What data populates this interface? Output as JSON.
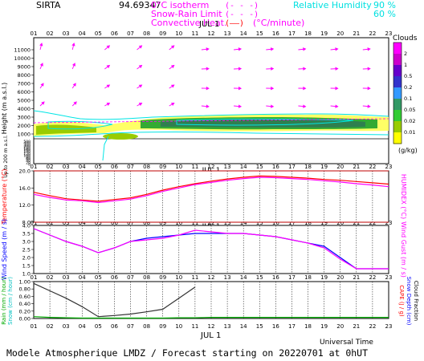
{
  "header": {
    "site": "SIRTA",
    "station_code": "94.69347",
    "legend_isotherm": "0°C isotherm",
    "legend_isotherm_sample": "(- - -)",
    "legend_snow": "Snow-Rain Limit",
    "legend_snow_sample": "(- - -)",
    "legend_conv": "Convective Heat.",
    "legend_conv_sample": "(——)",
    "legend_conv_unit": "(°C/minute)",
    "legend_rh": "Relative Humidity",
    "rh_90": "90 %",
    "rh_60": "60 %",
    "month_label": "JUL 1"
  },
  "colors": {
    "magenta": "#ff00ff",
    "cyan": "#00ffff",
    "red": "#ff0000",
    "blue": "#0000ff",
    "dark_green": "#006633",
    "bright_green": "#33cc33",
    "yellow": "#ffff00",
    "purple": "#9900cc"
  },
  "hours": [
    "01",
    "02",
    "03",
    "04",
    "05",
    "06",
    "07",
    "08",
    "09",
    "10",
    "11",
    "12",
    "13",
    "14",
    "15",
    "16",
    "17",
    "18",
    "19",
    "20",
    "21",
    "22",
    "23"
  ],
  "footer": {
    "caption": "Modele Atmospherique LMDZ / Forecast starting on 20220701 at 0hUT",
    "universal_time": "Universal Time",
    "month_label": "JUL 1"
  },
  "cloud_legend": {
    "title": "Clouds",
    "ticks": [
      "2",
      "1",
      "0.5",
      "0.2",
      "0.1",
      "0.05",
      "0.02",
      "0.01"
    ],
    "unit": "(g/kg)",
    "colors": [
      "#ff00ff",
      "#cc00cc",
      "#6600cc",
      "#3333cc",
      "#3399ff",
      "#339966",
      "#33cc33",
      "#99cc00",
      "#ffff00"
    ]
  },
  "chart_data": [
    {
      "type": "heatmap",
      "title": "Cloud water content and wind",
      "ylabel": "Height (m a.s.l.)",
      "ylabel2": "Up to 200 m a.s.l.",
      "y_ticks": [
        "11000",
        "10000",
        "9000",
        "8000",
        "7000",
        "6000",
        "5000",
        "4000",
        "3000",
        "2000",
        "1000",
        "500",
        "400",
        "300",
        "200",
        "180",
        "160",
        "140",
        "120",
        "100",
        "80",
        "60",
        "40",
        "20",
        "0"
      ],
      "x_ticks": [
        "01",
        "02",
        "03",
        "04",
        "05",
        "06",
        "07",
        "08",
        "09",
        "10",
        "11",
        "12",
        "13",
        "14",
        "15",
        "16",
        "17",
        "18",
        "19",
        "20",
        "21",
        "22",
        "23"
      ],
      "colorbar_unit": "g/kg",
      "cloud_layer_m": [
        1200,
        2800
      ],
      "wind_vectors_direction": "from south-west"
    },
    {
      "type": "line",
      "title": "Temperature",
      "ylabel": "Temperature (°C)",
      "ylabel2": "HUMIDEX (°C)",
      "ylim": [
        8.0,
        20.0
      ],
      "y_ticks": [
        "20.0",
        "16.0",
        "12.0",
        "8.0"
      ],
      "x": [
        "01",
        "02",
        "03",
        "04",
        "05",
        "06",
        "07",
        "08",
        "09",
        "10",
        "11",
        "12",
        "13",
        "14",
        "15",
        "16",
        "17",
        "18",
        "19",
        "20",
        "21",
        "22",
        "23"
      ],
      "series": [
        {
          "values": [
            15.0,
            14.2,
            13.5,
            13.2,
            12.9,
            13.3,
            13.7,
            14.5,
            15.5,
            16.3,
            17.0,
            17.6,
            18.1,
            18.5,
            18.8,
            18.7,
            18.5,
            18.3,
            18.0,
            17.8,
            17.5,
            17.2,
            16.9
          ]
        },
        {
          "values": [
            14.5,
            13.8,
            13.2,
            13.0,
            12.6,
            13.0,
            13.4,
            14.2,
            15.2,
            16.0,
            16.8,
            17.3,
            17.8,
            18.2,
            18.5,
            18.4,
            18.2,
            18.0,
            17.7,
            17.4,
            17.0,
            16.7,
            16.3
          ]
        }
      ]
    },
    {
      "type": "line",
      "title": "Wind Speed",
      "ylabel": "Wind Speed (m / s)",
      "ylabel2": "Wind Gust (m / s)",
      "ylim": [
        1.0,
        4.0
      ],
      "y_ticks": [
        "4.0",
        "3.5",
        "3.0",
        "2.5",
        "2.0",
        "1.5",
        "1.0"
      ],
      "x": [
        "01",
        "02",
        "03",
        "04",
        "05",
        "06",
        "07",
        "08",
        "09",
        "10",
        "11",
        "12",
        "13",
        "14",
        "15",
        "16",
        "17",
        "18",
        "19",
        "20",
        "21",
        "22",
        "23"
      ],
      "series": [
        {
          "values": [
            3.8,
            3.4,
            3.0,
            2.7,
            2.3,
            2.6,
            3.0,
            3.2,
            3.3,
            3.4,
            3.5,
            3.5,
            3.5,
            3.5,
            3.4,
            3.3,
            3.1,
            2.9,
            2.7,
            2.0,
            1.3,
            1.3,
            1.3
          ]
        },
        {
          "values": [
            3.8,
            3.4,
            3.0,
            2.7,
            2.3,
            2.6,
            3.0,
            3.1,
            3.2,
            3.4,
            3.7,
            3.6,
            3.5,
            3.5,
            3.4,
            3.3,
            3.1,
            2.9,
            2.6,
            1.9,
            1.3,
            1.3,
            1.3
          ]
        }
      ]
    },
    {
      "type": "line",
      "title": "Precipitation",
      "ylabel_green": "Rain (mm / hour)",
      "ylabel_cyan": "Snow (cm / hour)",
      "ylabel_right_red": "CAPE (J / g)",
      "ylabel_right_blue": "Snow Depth (cm)",
      "ylabel_right_black": "Cloud Fraction",
      "ylim": [
        0.0,
        1.0
      ],
      "y_ticks": [
        "1.00",
        "0.80",
        "0.60",
        "0.40",
        "0.20",
        "0.00"
      ],
      "x": [
        "01",
        "02",
        "03",
        "04",
        "05",
        "06",
        "07",
        "08",
        "09",
        "10",
        "11",
        "12",
        "13",
        "14",
        "15",
        "16",
        "17",
        "18",
        "19",
        "20",
        "21",
        "22",
        "23"
      ],
      "series": [
        {
          "values": [
            0.95,
            0.75,
            0.55,
            0.32,
            0.05,
            0.08,
            0.12,
            0.18,
            0.25,
            0.55,
            0.85,
            null,
            null,
            null,
            null,
            null,
            null,
            null,
            null,
            null,
            null,
            null,
            null
          ]
        },
        {
          "values": [
            0.05,
            0.03,
            0.02,
            0.01,
            0.01,
            0.01,
            0.01,
            0.01,
            0.01,
            0.02,
            0.02,
            0.03,
            0.03,
            0.03,
            0.03,
            0.03,
            0.03,
            0.03,
            0.03,
            0.03,
            0.03,
            0.03,
            0.03
          ]
        }
      ]
    }
  ]
}
